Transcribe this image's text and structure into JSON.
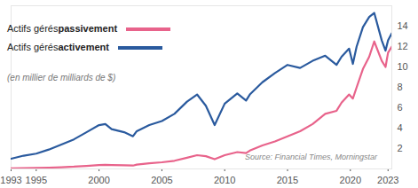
{
  "chart_data": {
    "type": "line",
    "subtitle": "(en millier de milliards de $)",
    "caption": "Source: Financial Times, Morningstar",
    "legend": "top-left",
    "grid": false,
    "x": [
      1993,
      1994,
      1995,
      1996,
      1997,
      1998,
      1999,
      2000,
      2000.5,
      2001,
      2002,
      2002.7,
      2003,
      2004,
      2005,
      2006,
      2007,
      2007.8,
      2008.5,
      2009.2,
      2010,
      2011,
      2011.7,
      2012,
      2013,
      2014,
      2015,
      2016,
      2017,
      2018,
      2018.9,
      2019.3,
      2019.9,
      2020.2,
      2020.5,
      2021,
      2021.5,
      2021.9,
      2022.5,
      2022.8,
      2023,
      2023.3
    ],
    "series": [
      {
        "name": "Actifs gérés passivement",
        "color": "#e8638b",
        "values": [
          0.05,
          0.07,
          0.1,
          0.13,
          0.17,
          0.22,
          0.3,
          0.38,
          0.4,
          0.38,
          0.36,
          0.33,
          0.42,
          0.55,
          0.65,
          0.8,
          1.1,
          1.35,
          1.25,
          0.95,
          1.35,
          1.65,
          1.55,
          1.8,
          2.3,
          2.7,
          3.2,
          3.7,
          4.4,
          5.4,
          5.7,
          6.5,
          7.3,
          6.9,
          8.0,
          9.8,
          11.0,
          12.5,
          10.6,
          10.0,
          11.4,
          12.0
        ]
      },
      {
        "name": "Actifs gérés activement",
        "color": "#2a5a9e",
        "values": [
          1.0,
          1.3,
          1.5,
          1.9,
          2.4,
          2.9,
          3.6,
          4.3,
          4.4,
          3.9,
          3.6,
          3.2,
          3.7,
          4.3,
          4.7,
          5.4,
          6.6,
          7.3,
          6.2,
          4.3,
          6.4,
          7.4,
          6.7,
          7.3,
          8.5,
          9.4,
          10.2,
          9.9,
          10.6,
          11.1,
          10.2,
          11.0,
          11.8,
          10.3,
          12.0,
          13.9,
          14.9,
          15.3,
          12.6,
          11.6,
          12.6,
          13.3
        ]
      }
    ],
    "xlim": [
      1993,
      2023.3
    ],
    "xticks": [
      1993,
      1995,
      2000,
      2005,
      2010,
      2015,
      2020,
      2023
    ],
    "ylim": [
      0,
      16
    ],
    "yticks": [
      2,
      4,
      6,
      8,
      10,
      12,
      14
    ]
  }
}
